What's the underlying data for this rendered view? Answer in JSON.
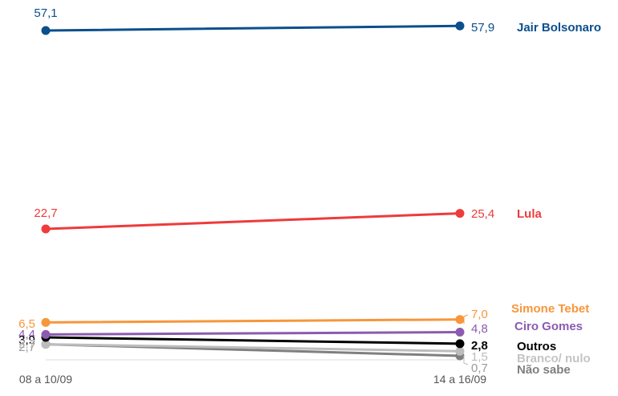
{
  "chart_data": {
    "type": "line",
    "x": [
      "08 a 10/09",
      "14 a 16/09"
    ],
    "series": [
      {
        "name": "Jair Bolsonaro",
        "values": [
          57.1,
          57.9
        ],
        "labels": [
          "57,1",
          "57,9"
        ],
        "color": "#0b4f8c"
      },
      {
        "name": "Lula",
        "values": [
          22.7,
          25.4
        ],
        "labels": [
          "22,7",
          "25,4"
        ],
        "color": "#ee3b3b"
      },
      {
        "name": "Simone Tebet",
        "values": [
          6.5,
          7.0
        ],
        "labels": [
          "6,5",
          "7,0"
        ],
        "color": "#f7963b"
      },
      {
        "name": "Ciro Gomes",
        "values": [
          4.4,
          4.8
        ],
        "labels": [
          "4,4",
          "4,8"
        ],
        "color": "#8b5bb0"
      },
      {
        "name": "Outros",
        "values": [
          3.9,
          2.8
        ],
        "labels": [
          "3,9",
          "2,8"
        ],
        "color": "#000000"
      },
      {
        "name": "Branco/ nulo",
        "values": [
          2.7,
          1.5
        ],
        "labels": [
          "2,7",
          "1,5"
        ],
        "color": "#bcbcbc"
      },
      {
        "name": "Não sabe",
        "values": [
          2.7,
          0.7
        ],
        "labels": [
          "2,7",
          "0,7"
        ],
        "color": "#7f7f7f"
      }
    ]
  }
}
